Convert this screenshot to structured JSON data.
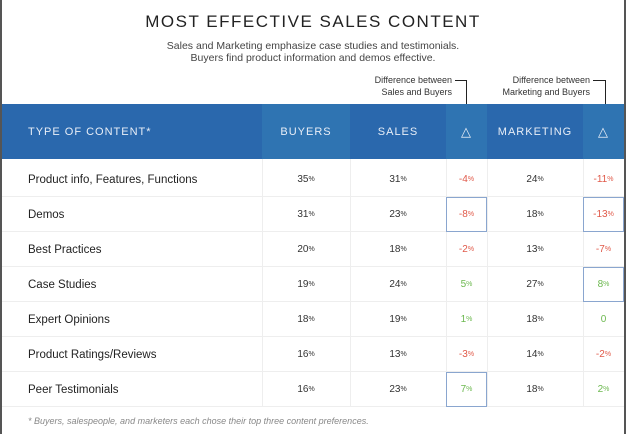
{
  "title": "MOST EFFECTIVE SALES CONTENT",
  "subtitle_line1": "Sales and Marketing emphasize case studies and testimonials.",
  "subtitle_line2": "Buyers find product information and demos effective.",
  "annotations": {
    "sales_buyers_line1": "Difference between",
    "sales_buyers_line2": "Sales and Buyers",
    "marketing_buyers_line1": "Difference between",
    "marketing_buyers_line2": "Marketing and Buyers"
  },
  "footnote": "* Buyers, salespeople, and marketers each chose their top three content preferences.",
  "colors": {
    "header_bg": "#2a68ad",
    "header_alt": "#2f74b2",
    "negative": "#e05a4a",
    "positive": "#6cb84f",
    "highlight_border": "#8aa6cf"
  },
  "chart_data": {
    "type": "table",
    "title": "MOST EFFECTIVE SALES CONTENT",
    "columns": [
      "TYPE OF CONTENT*",
      "BUYERS",
      "SALES",
      "△",
      "MARKETING",
      "△"
    ],
    "rows": [
      {
        "label": "Product info, Features, Functions",
        "buyers": "35",
        "sales": "31",
        "d1": "-4",
        "marketing": "24",
        "d2": "-11",
        "hl1": false,
        "hl2": false
      },
      {
        "label": "Demos",
        "buyers": "31",
        "sales": "23",
        "d1": "-8",
        "marketing": "18",
        "d2": "-13",
        "hl1": true,
        "hl2": true
      },
      {
        "label": "Best Practices",
        "buyers": "20",
        "sales": "18",
        "d1": "-2",
        "marketing": "13",
        "d2": "-7",
        "hl1": false,
        "hl2": false
      },
      {
        "label": "Case Studies",
        "buyers": "19",
        "sales": "24",
        "d1": "5",
        "marketing": "27",
        "d2": "8",
        "hl1": false,
        "hl2": true
      },
      {
        "label": "Expert Opinions",
        "buyers": "18",
        "sales": "19",
        "d1": "1",
        "marketing": "18",
        "d2": "0",
        "hl1": false,
        "hl2": false
      },
      {
        "label": "Product Ratings/Reviews",
        "buyers": "16",
        "sales": "13",
        "d1": "-3",
        "marketing": "14",
        "d2": "-2",
        "hl1": false,
        "hl2": false
      },
      {
        "label": "Peer Testimonials",
        "buyers": "16",
        "sales": "23",
        "d1": "7",
        "marketing": "18",
        "d2": "2",
        "hl1": true,
        "hl2": false
      }
    ],
    "unit": "%"
  }
}
